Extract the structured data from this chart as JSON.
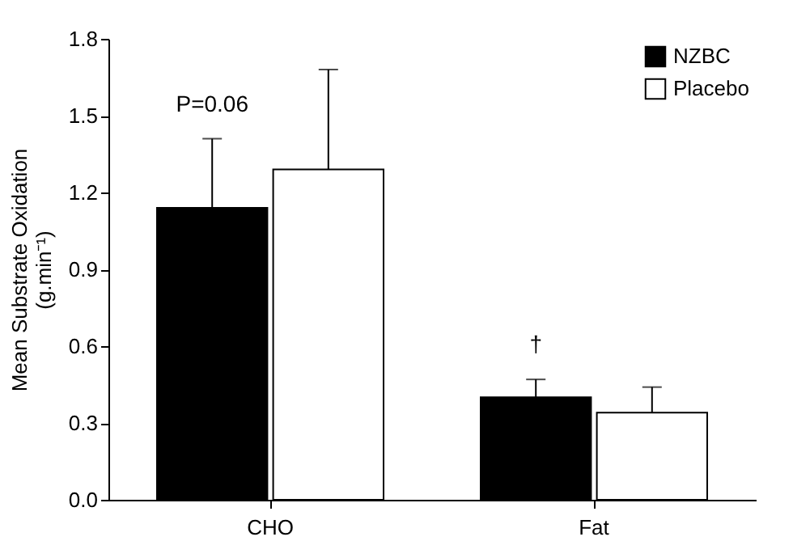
{
  "chart_data": {
    "type": "bar",
    "ylabel": "Mean Substrate Oxidation\n(g.min⁻¹)",
    "categories": [
      "CHO",
      "Fat"
    ],
    "series": [
      {
        "name": "NZBC",
        "color": "#000000",
        "values": [
          1.14,
          0.4
        ],
        "errors": [
          [
            1.14,
            1.41
          ],
          [
            0.4,
            0.47
          ]
        ]
      },
      {
        "name": "Placebo",
        "color": "#ffffff",
        "values": [
          1.29,
          0.34
        ],
        "errors": [
          [
            1.29,
            1.68
          ],
          [
            0.34,
            0.44
          ]
        ]
      }
    ],
    "ylim": [
      0,
      1.8
    ],
    "yticks": [
      {
        "value": 0,
        "label": "0.0"
      },
      {
        "value": 0.3,
        "label": "0.3"
      },
      {
        "value": 0.6,
        "label": "0.6"
      },
      {
        "value": 0.9,
        "label": "0.9"
      },
      {
        "value": 1.2,
        "label": "1.2"
      },
      {
        "value": 1.5,
        "label": "1.5"
      },
      {
        "value": 1.8,
        "label": "1.8"
      }
    ],
    "annotations": [
      "P=0.06",
      "†"
    ],
    "legend": "top right",
    "grid": false
  }
}
